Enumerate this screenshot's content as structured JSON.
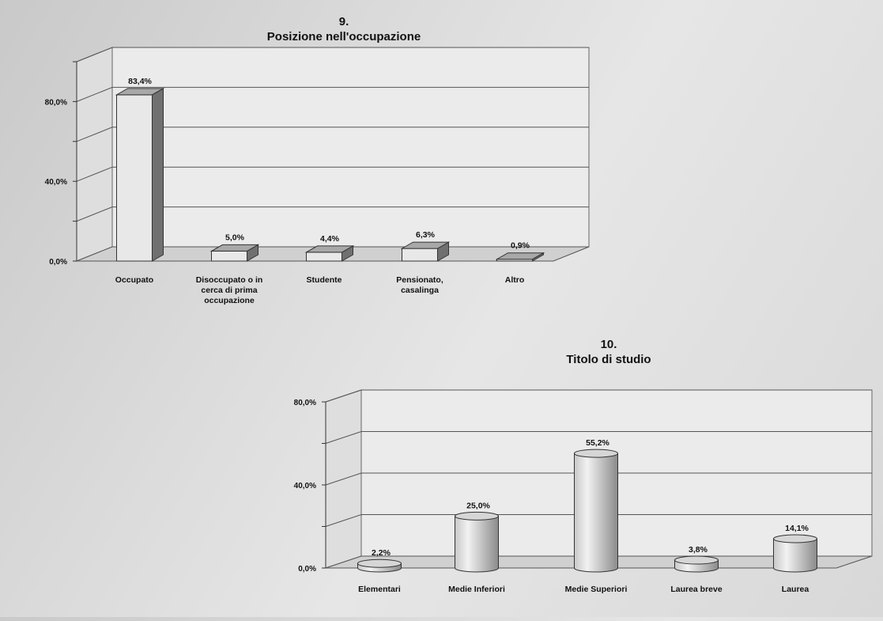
{
  "chart_data": [
    {
      "type": "bar",
      "number": "9.",
      "title": "Posizione nell'occupazione",
      "categories": [
        "Occupato",
        "Disoccupato o in cerca di prima occupazione",
        "Studente",
        "Pensionato, casalinga",
        "Altro"
      ],
      "category_lines": [
        [
          "Occupato"
        ],
        [
          "Disoccupato o in",
          "cerca di prima",
          "occupazione"
        ],
        [
          "Studente"
        ],
        [
          "Pensionato,",
          "casalinga"
        ],
        [
          "Altro"
        ]
      ],
      "values": [
        83.4,
        5.0,
        4.4,
        6.3,
        0.9
      ],
      "value_labels": [
        "83,4%",
        "5,0%",
        "4,4%",
        "6,3%",
        "0,9%"
      ],
      "ylim": [
        0,
        100
      ],
      "yticks": [
        0,
        40,
        80
      ],
      "ytick_labels": [
        "0,0%",
        "40,0%",
        "80,0%"
      ],
      "minor_step": 20,
      "grid": true,
      "shape": "box-3d"
    },
    {
      "type": "bar",
      "number": "10.",
      "title": "Titolo di studio",
      "categories": [
        "Elementari",
        "Medie Inferiori",
        "Medie Superiori",
        "Laurea breve",
        "Laurea"
      ],
      "category_lines": [
        [
          "Elementari"
        ],
        [
          "Medie Inferiori"
        ],
        [
          "Medie Superiori"
        ],
        [
          "Laurea breve"
        ],
        [
          "Laurea"
        ]
      ],
      "values": [
        2.2,
        25.0,
        55.2,
        3.8,
        14.1
      ],
      "value_labels": [
        "2,2%",
        "25,0%",
        "55,2%",
        "3,8%",
        "14,1%"
      ],
      "ylim": [
        0,
        80
      ],
      "yticks": [
        0,
        40,
        80
      ],
      "ytick_labels": [
        "0,0%",
        "40,0%",
        "80,0%"
      ],
      "minor_step": 20,
      "grid": true,
      "shape": "cylinder-3d"
    }
  ],
  "colors": {
    "bar_front": "#e8e8e8",
    "bar_side": "#707070",
    "bar_top": "#a8a8a8",
    "cylinder_light": "#f2f2f2",
    "cylinder_mid": "#c8c8c8",
    "cylinder_dark": "#8a8a8a",
    "wall": "#ebebeb",
    "floor": "#d0d0d0",
    "gridline": "#555555"
  }
}
